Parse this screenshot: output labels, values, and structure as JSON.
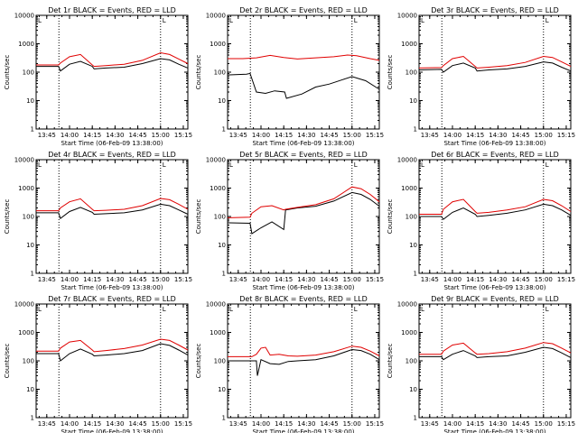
{
  "figure": {
    "x_tick_labels": [
      "13:45",
      "14:00",
      "14:15",
      "14:30",
      "14:45",
      "15:00",
      "15:15"
    ],
    "y_tick_labels": [
      "1",
      "10",
      "100",
      "1000",
      "10000"
    ],
    "ylabel": "Counts/sec",
    "xlabel": "Start Time (06-Feb-09 13:38:00)",
    "corner_marker": "L"
  },
  "chart_data": [
    {
      "type": "line",
      "title": "Det 1r BLACK = Events, RED = LLD",
      "xlim": [
        13.633,
        15.3
      ],
      "ylim": [
        1,
        10000
      ],
      "y_scale": "log",
      "vertical_lines": [
        "13:53",
        "15:00"
      ],
      "series": [
        {
          "color": "#000000",
          "x": [
            13.633,
            13.88,
            13.9,
            14.0,
            14.12,
            14.25,
            14.27,
            14.4,
            14.6,
            14.8,
            15.0,
            15.1,
            15.2,
            15.3
          ],
          "values": [
            160,
            160,
            110,
            190,
            240,
            160,
            130,
            140,
            150,
            200,
            300,
            270,
            190,
            140
          ]
        },
        {
          "color": "#e00000",
          "x": [
            13.633,
            13.88,
            13.9,
            14.0,
            14.12,
            14.25,
            14.27,
            14.4,
            14.6,
            14.8,
            15.0,
            15.1,
            15.2,
            15.3
          ],
          "values": [
            180,
            180,
            210,
            350,
            420,
            180,
            160,
            170,
            190,
            260,
            480,
            420,
            290,
            200
          ]
        }
      ]
    },
    {
      "type": "line",
      "title": "Det 2r BLACK = Events, RED = LLD",
      "xlim": [
        13.633,
        15.3
      ],
      "ylim": [
        1,
        10000
      ],
      "y_scale": "log",
      "vertical_lines": [
        "13:53",
        "15:00"
      ],
      "series": [
        {
          "color": "#000000",
          "x": [
            13.633,
            13.84,
            13.88,
            13.95,
            14.05,
            14.15,
            14.26,
            14.28,
            14.45,
            14.6,
            14.75,
            14.9,
            15.0,
            15.15,
            15.3
          ],
          "values": [
            80,
            85,
            90,
            20,
            18,
            22,
            20,
            12,
            17,
            30,
            38,
            55,
            70,
            50,
            25
          ]
        },
        {
          "color": "#e00000",
          "x": [
            13.633,
            13.8,
            13.95,
            14.1,
            14.25,
            14.4,
            14.6,
            14.8,
            14.95,
            15.05,
            15.2,
            15.3
          ],
          "values": [
            300,
            300,
            320,
            390,
            330,
            290,
            320,
            350,
            400,
            380,
            300,
            260
          ]
        }
      ]
    },
    {
      "type": "line",
      "title": "Det 3r BLACK = Events, RED = LLD",
      "xlim": [
        13.633,
        15.3
      ],
      "ylim": [
        1,
        10000
      ],
      "y_scale": "log",
      "vertical_lines": [
        "13:53",
        "15:00"
      ],
      "series": [
        {
          "color": "#000000",
          "x": [
            13.633,
            13.88,
            13.9,
            14.0,
            14.12,
            14.25,
            14.27,
            14.4,
            14.6,
            14.8,
            15.0,
            15.1,
            15.2,
            15.3
          ],
          "values": [
            120,
            125,
            100,
            170,
            210,
            140,
            110,
            120,
            130,
            160,
            230,
            210,
            150,
            110
          ]
        },
        {
          "color": "#e00000",
          "x": [
            13.633,
            13.88,
            13.9,
            14.0,
            14.12,
            14.25,
            14.27,
            14.4,
            14.6,
            14.8,
            15.0,
            15.1,
            15.2,
            15.3
          ],
          "values": [
            140,
            145,
            170,
            300,
            360,
            160,
            140,
            150,
            170,
            220,
            360,
            330,
            230,
            160
          ]
        }
      ]
    },
    {
      "type": "line",
      "title": "Det 4r BLACK = Events, RED = LLD",
      "xlim": [
        13.633,
        15.3
      ],
      "ylim": [
        1,
        10000
      ],
      "y_scale": "log",
      "vertical_lines": [
        "13:53",
        "15:00"
      ],
      "series": [
        {
          "color": "#000000",
          "x": [
            13.633,
            13.88,
            13.9,
            14.0,
            14.12,
            14.25,
            14.27,
            14.4,
            14.6,
            14.8,
            15.0,
            15.1,
            15.2,
            15.3
          ],
          "values": [
            135,
            135,
            85,
            150,
            210,
            140,
            120,
            125,
            135,
            170,
            270,
            240,
            170,
            120
          ]
        },
        {
          "color": "#e00000",
          "x": [
            13.633,
            13.88,
            13.9,
            14.0,
            14.12,
            14.25,
            14.27,
            14.4,
            14.6,
            14.8,
            15.0,
            15.1,
            15.2,
            15.3
          ],
          "values": [
            160,
            160,
            200,
            330,
            420,
            180,
            160,
            165,
            180,
            240,
            430,
            390,
            270,
            180
          ]
        }
      ]
    },
    {
      "type": "line",
      "title": "Det 5r BLACK = Events, RED = LLD",
      "xlim": [
        13.633,
        15.3
      ],
      "ylim": [
        1,
        10000
      ],
      "y_scale": "log",
      "vertical_lines": [
        "13:53",
        "15:00"
      ],
      "series": [
        {
          "color": "#000000",
          "x": [
            13.633,
            13.88,
            13.9,
            14.0,
            14.12,
            14.25,
            14.27,
            14.4,
            14.6,
            14.8,
            15.0,
            15.1,
            15.2,
            15.3
          ],
          "values": [
            60,
            58,
            25,
            40,
            65,
            35,
            170,
            200,
            230,
            350,
            700,
            600,
            400,
            230
          ]
        },
        {
          "color": "#e00000",
          "x": [
            13.633,
            13.88,
            13.9,
            14.0,
            14.12,
            14.25,
            14.27,
            14.4,
            14.6,
            14.8,
            15.0,
            15.1,
            15.2,
            15.3
          ],
          "values": [
            90,
            95,
            130,
            220,
            240,
            170,
            180,
            210,
            260,
            420,
            1100,
            950,
            600,
            330
          ]
        }
      ]
    },
    {
      "type": "line",
      "title": "Det 6r BLACK = Events, RED = LLD",
      "xlim": [
        13.633,
        15.3
      ],
      "ylim": [
        1,
        10000
      ],
      "y_scale": "log",
      "vertical_lines": [
        "13:53",
        "15:00"
      ],
      "series": [
        {
          "color": "#000000",
          "x": [
            13.633,
            13.88,
            13.9,
            14.0,
            14.12,
            14.25,
            14.27,
            14.4,
            14.6,
            14.8,
            15.0,
            15.1,
            15.2,
            15.3
          ],
          "values": [
            100,
            100,
            80,
            140,
            200,
            120,
            100,
            110,
            130,
            170,
            270,
            240,
            170,
            110
          ]
        },
        {
          "color": "#e00000",
          "x": [
            13.633,
            13.88,
            13.9,
            14.0,
            14.12,
            14.25,
            14.27,
            14.4,
            14.6,
            14.8,
            15.0,
            15.1,
            15.2,
            15.3
          ],
          "values": [
            120,
            120,
            180,
            330,
            400,
            150,
            130,
            140,
            170,
            220,
            400,
            360,
            240,
            150
          ]
        }
      ]
    },
    {
      "type": "line",
      "title": "Det 7r BLACK = Events, RED = LLD",
      "xlim": [
        13.633,
        15.3
      ],
      "ylim": [
        1,
        10000
      ],
      "y_scale": "log",
      "vertical_lines": [
        "13:53",
        "15:00"
      ],
      "series": [
        {
          "color": "#000000",
          "x": [
            13.633,
            13.88,
            13.9,
            14.0,
            14.12,
            14.25,
            14.27,
            14.4,
            14.6,
            14.8,
            15.0,
            15.1,
            15.2,
            15.3
          ],
          "values": [
            180,
            180,
            100,
            180,
            260,
            170,
            150,
            160,
            180,
            230,
            400,
            350,
            240,
            160
          ]
        },
        {
          "color": "#e00000",
          "x": [
            13.633,
            13.88,
            13.9,
            14.0,
            14.12,
            14.25,
            14.27,
            14.4,
            14.6,
            14.8,
            15.0,
            15.1,
            15.2,
            15.3
          ],
          "values": [
            220,
            220,
            280,
            460,
            520,
            240,
            210,
            230,
            270,
            360,
            580,
            520,
            360,
            240
          ]
        }
      ]
    },
    {
      "type": "line",
      "title": "Det 8r BLACK = Events, RED = LLD",
      "xlim": [
        13.633,
        15.3
      ],
      "ylim": [
        1,
        10000
      ],
      "y_scale": "log",
      "vertical_lines": [
        "13:53",
        "15:00"
      ],
      "series": [
        {
          "color": "#000000",
          "x": [
            13.633,
            13.9,
            13.95,
            13.96,
            14.0,
            14.1,
            14.2,
            14.3,
            14.4,
            14.6,
            14.8,
            15.0,
            15.1,
            15.2,
            15.3
          ],
          "values": [
            100,
            100,
            100,
            30,
            110,
            80,
            75,
            95,
            100,
            110,
            150,
            250,
            230,
            170,
            110
          ]
        },
        {
          "color": "#e00000",
          "x": [
            13.633,
            13.9,
            13.95,
            14.0,
            14.05,
            14.1,
            14.2,
            14.3,
            14.4,
            14.6,
            14.8,
            15.0,
            15.1,
            15.2,
            15.3
          ],
          "values": [
            140,
            140,
            170,
            280,
            300,
            160,
            170,
            150,
            145,
            160,
            210,
            330,
            300,
            220,
            150
          ]
        }
      ]
    },
    {
      "type": "line",
      "title": "Det 9r BLACK = Events, RED = LLD",
      "xlim": [
        13.633,
        15.3
      ],
      "ylim": [
        1,
        10000
      ],
      "y_scale": "log",
      "vertical_lines": [
        "13:53",
        "15:00"
      ],
      "series": [
        {
          "color": "#000000",
          "x": [
            13.633,
            13.88,
            13.9,
            14.0,
            14.12,
            14.25,
            14.27,
            14.4,
            14.6,
            14.8,
            15.0,
            15.1,
            15.2,
            15.3
          ],
          "values": [
            140,
            140,
            110,
            170,
            230,
            150,
            130,
            140,
            150,
            200,
            300,
            270,
            190,
            130
          ]
        },
        {
          "color": "#e00000",
          "x": [
            13.633,
            13.88,
            13.9,
            14.0,
            14.12,
            14.25,
            14.27,
            14.4,
            14.6,
            14.8,
            15.0,
            15.1,
            15.2,
            15.3
          ],
          "values": [
            170,
            170,
            220,
            360,
            420,
            190,
            170,
            180,
            210,
            280,
            440,
            400,
            280,
            190
          ]
        }
      ]
    }
  ]
}
